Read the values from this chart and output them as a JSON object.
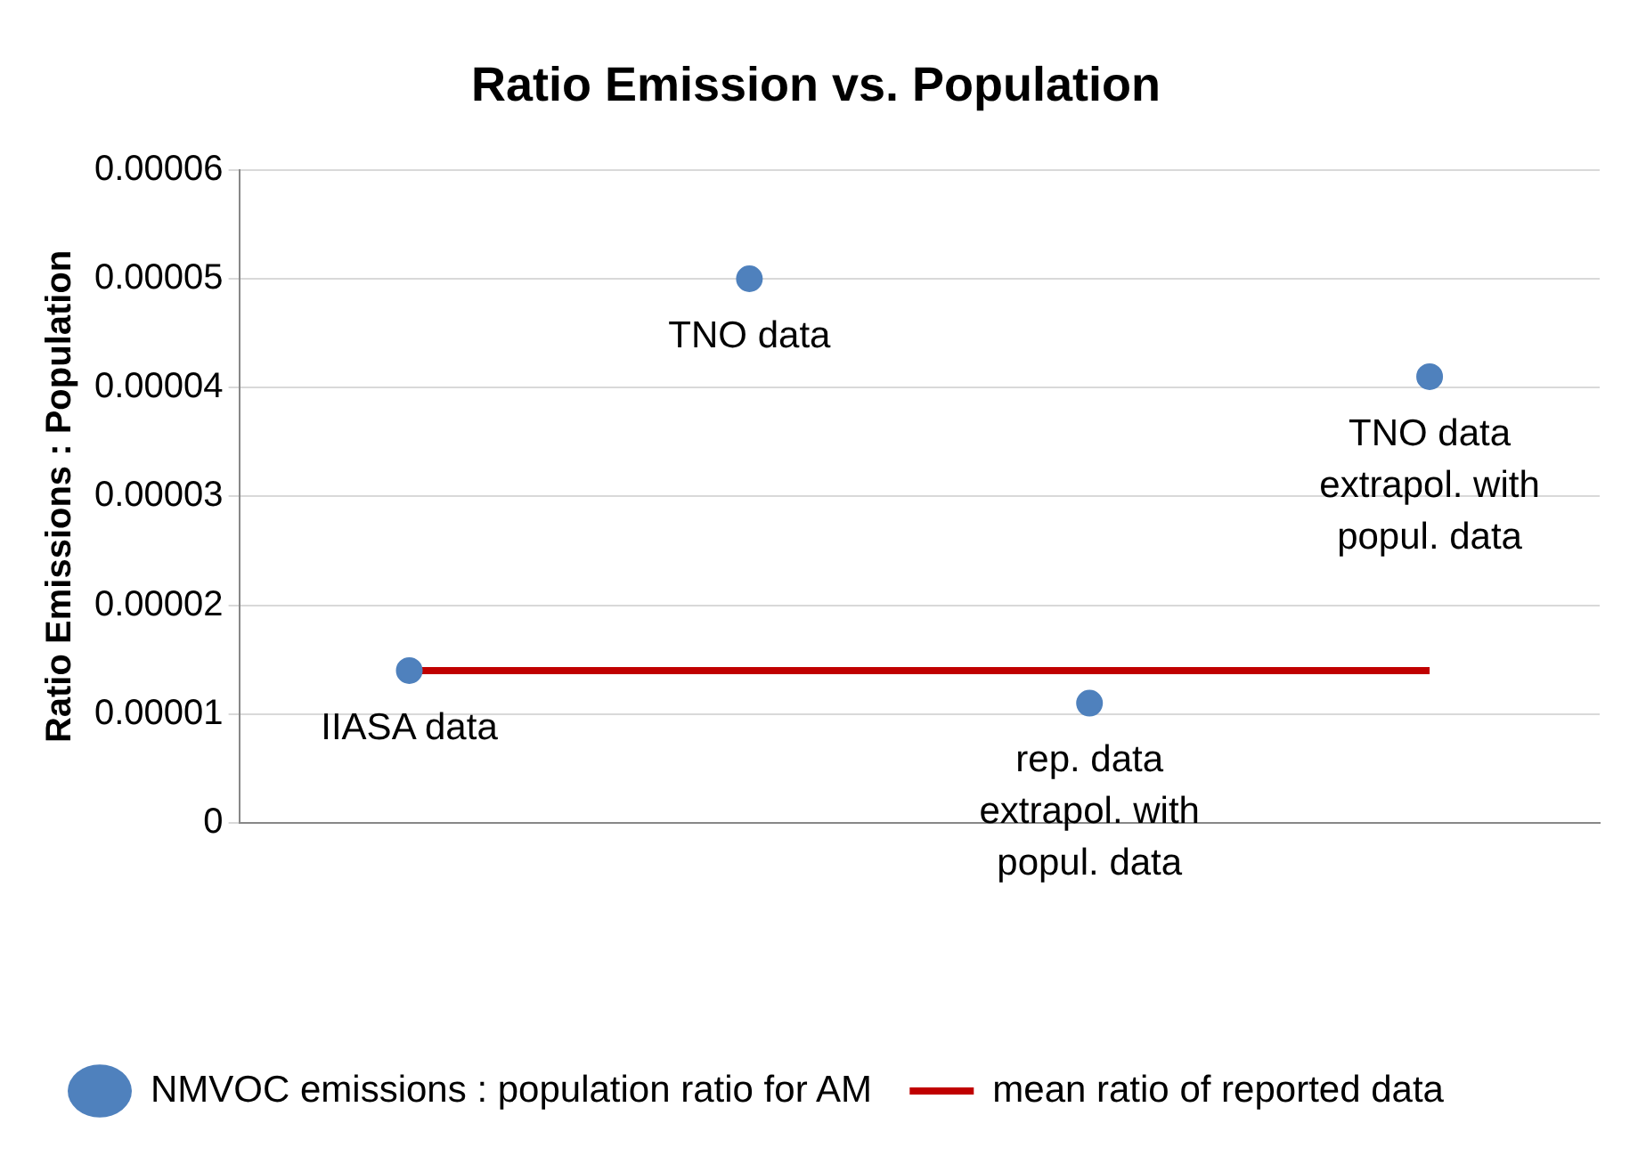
{
  "chart_data": {
    "type": "scatter",
    "title": "Ratio Emission vs. Population",
    "ylabel": "Ratio Emissions : Population",
    "categories": [
      null,
      null,
      null,
      null
    ],
    "series": [
      {
        "name": "NMVOC emissions : population ratio for AM",
        "color": "#4f81bd",
        "marker": "circle",
        "values": [
          1.4e-05,
          5e-05,
          1.1e-05,
          4.1e-05
        ]
      },
      {
        "name": "mean ratio of reported data",
        "type": "line",
        "color": "#c00000",
        "marker": "none",
        "line_style": "solid",
        "values": [
          1.4e-05,
          1.4e-05,
          1.4e-05,
          1.4e-05
        ]
      }
    ],
    "annotations": [
      "IIASA data",
      "TNO data",
      "rep. data extrapol. with popul. data",
      "TNO data extrapol. with popul. data"
    ],
    "ylim": [
      0,
      6e-05
    ],
    "yticks": [
      0,
      {
        "value": 1e-05,
        "label": "0.00001"
      },
      {
        "value": 2e-05,
        "label": "0.00002"
      },
      {
        "value": 3e-05,
        "label": "0.00003"
      },
      {
        "value": 4e-05,
        "label": "0.00004"
      },
      {
        "value": 5e-05,
        "label": "0.00005"
      },
      {
        "value": 6e-05,
        "label": "0.00006"
      }
    ],
    "grid": "y",
    "legend": "bottom"
  }
}
